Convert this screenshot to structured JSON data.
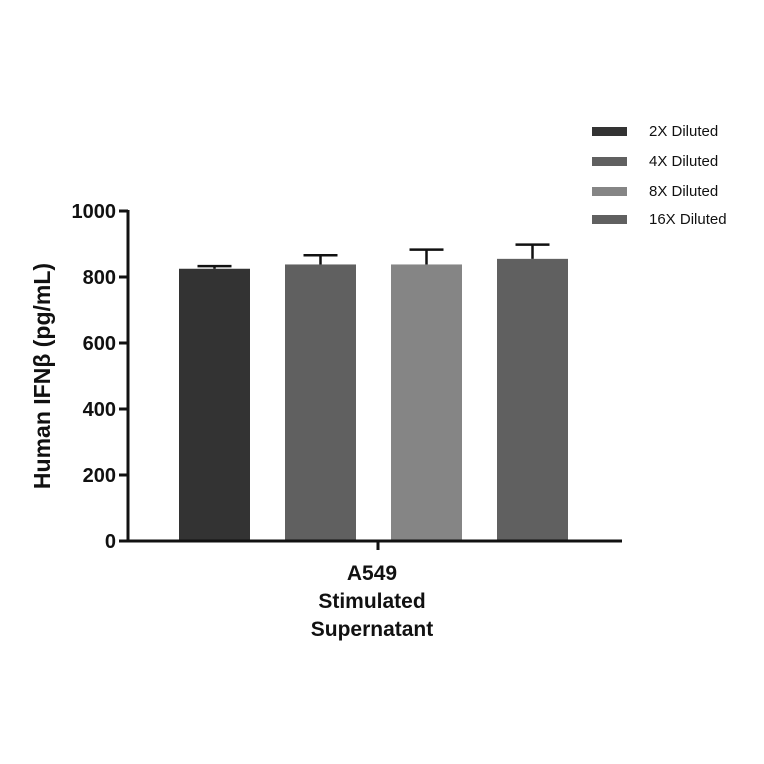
{
  "chart_data": {
    "type": "bar",
    "title": "",
    "xlabel": "",
    "ylabel": "Human IFNβ (pg/mL)",
    "categories": [
      "A549 Stimulated Supernatant"
    ],
    "category_label_lines": [
      "A549",
      "Stimulated",
      "Supernatant"
    ],
    "ylim": [
      0,
      1000
    ],
    "yticks": [
      "0",
      "200",
      "400",
      "600",
      "800",
      "1000"
    ],
    "grid": false,
    "legend_position": "top-right",
    "series": [
      {
        "name": "2X Diluted",
        "values": [
          825
        ],
        "error": [
          8
        ],
        "color": "#333333"
      },
      {
        "name": "4X Diluted",
        "values": [
          838
        ],
        "error": [
          28
        ],
        "color": "#606060"
      },
      {
        "name": "8X Diluted",
        "values": [
          838
        ],
        "error": [
          45
        ],
        "color": "#858585"
      },
      {
        "name": "16X Diluted",
        "values": [
          855
        ],
        "error": [
          43
        ],
        "color": "#606060"
      }
    ]
  }
}
